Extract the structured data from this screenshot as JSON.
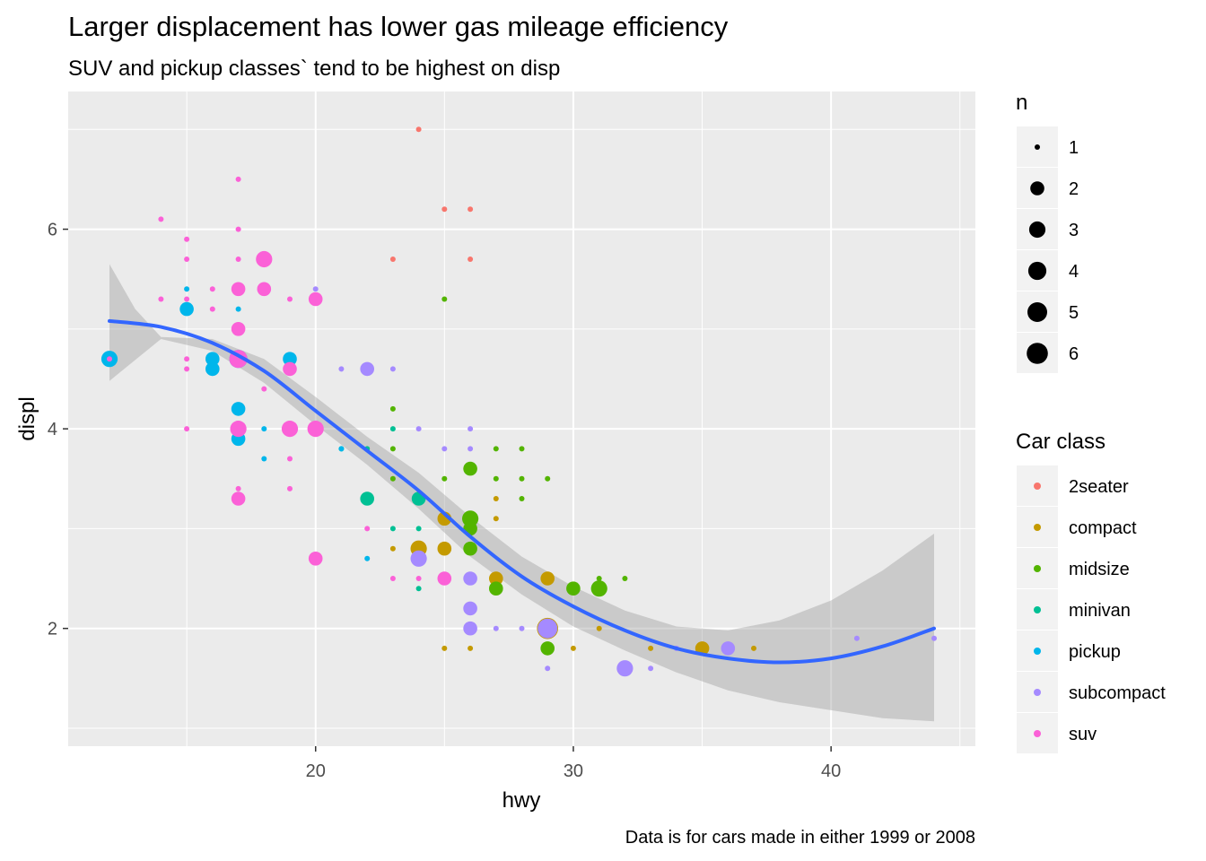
{
  "chart_data": {
    "type": "scatter",
    "title": "Larger displacement has lower gas mileage efficiency",
    "subtitle": "SUV and pickup classes` tend to be highest on disp",
    "caption": "Data is for cars made in either 1999 or 2008",
    "xlabel": "hwy",
    "ylabel": "displ",
    "xlim": [
      10.4,
      45.6
    ],
    "ylim": [
      0.82,
      7.38
    ],
    "x_ticks": [
      20,
      30,
      40
    ],
    "y_ticks": [
      2,
      4,
      6
    ],
    "grid": true,
    "legend_position": "right",
    "size_legend": {
      "title": "n",
      "values": [
        1,
        2,
        3,
        4,
        5,
        6
      ]
    },
    "color_legend": {
      "title": "Car class",
      "entries": [
        {
          "label": "2seater",
          "color": "#F8766D"
        },
        {
          "label": "compact",
          "color": "#C49A00"
        },
        {
          "label": "midsize",
          "color": "#53B400"
        },
        {
          "label": "minivan",
          "color": "#00C094"
        },
        {
          "label": "pickup",
          "color": "#00B6EB"
        },
        {
          "label": "subcompact",
          "color": "#A58AFF"
        },
        {
          "label": "suv",
          "color": "#FB61D7"
        }
      ]
    },
    "series": [
      {
        "name": "2seater",
        "points": [
          [
            23,
            5.7,
            1
          ],
          [
            24,
            7.0,
            1
          ],
          [
            25,
            6.2,
            1
          ],
          [
            26,
            6.2,
            1
          ],
          [
            26,
            5.7,
            1
          ]
        ]
      },
      {
        "name": "compact",
        "points": [
          [
            24,
            2.8,
            3
          ],
          [
            25,
            3.1,
            2
          ],
          [
            25,
            2.8,
            2
          ],
          [
            26,
            3.1,
            2
          ],
          [
            27,
            3.1,
            1
          ],
          [
            27,
            3.3,
            1
          ],
          [
            27,
            2.5,
            2
          ],
          [
            29,
            2.5,
            2
          ],
          [
            29,
            2.0,
            6
          ],
          [
            30,
            1.8,
            1
          ],
          [
            31,
            2.0,
            1
          ],
          [
            35,
            1.8,
            2
          ],
          [
            37,
            1.8,
            1
          ],
          [
            33,
            1.8,
            1
          ],
          [
            25,
            1.8,
            1
          ],
          [
            26,
            1.8,
            1
          ],
          [
            23,
            2.8,
            1
          ]
        ]
      },
      {
        "name": "midsize",
        "points": [
          [
            25,
            5.3,
            1
          ],
          [
            26,
            3.6,
            2
          ],
          [
            26,
            3.1,
            3
          ],
          [
            26,
            3.0,
            2
          ],
          [
            26,
            2.8,
            2
          ],
          [
            27,
            3.5,
            1
          ],
          [
            27,
            3.8,
            1
          ],
          [
            27,
            2.4,
            2
          ],
          [
            28,
            3.8,
            1
          ],
          [
            28,
            3.5,
            1
          ],
          [
            28,
            3.3,
            1
          ],
          [
            29,
            3.5,
            1
          ],
          [
            29,
            1.8,
            2
          ],
          [
            30,
            2.4,
            2
          ],
          [
            31,
            2.4,
            3
          ],
          [
            31,
            2.5,
            1
          ],
          [
            32,
            2.5,
            1
          ],
          [
            25,
            3.5,
            1
          ],
          [
            23,
            4.2,
            1
          ],
          [
            23,
            3.8,
            1
          ],
          [
            23,
            3.5,
            1
          ]
        ]
      },
      {
        "name": "minivan",
        "points": [
          [
            17,
            4.0,
            1
          ],
          [
            21,
            3.8,
            1
          ],
          [
            22,
            3.3,
            2
          ],
          [
            22,
            3.8,
            1
          ],
          [
            23,
            4.0,
            1
          ],
          [
            24,
            3.3,
            2
          ],
          [
            24,
            3.0,
            1
          ],
          [
            24,
            2.4,
            1
          ],
          [
            23,
            3.0,
            1
          ]
        ]
      },
      {
        "name": "pickup",
        "points": [
          [
            12,
            4.7,
            3
          ],
          [
            15,
            5.2,
            2
          ],
          [
            16,
            4.6,
            2
          ],
          [
            16,
            4.7,
            2
          ],
          [
            17,
            4.7,
            4
          ],
          [
            17,
            4.2,
            2
          ],
          [
            17,
            3.9,
            2
          ],
          [
            17,
            5.2,
            1
          ],
          [
            19,
            4.7,
            2
          ],
          [
            18,
            4.0,
            1
          ],
          [
            18,
            3.7,
            1
          ],
          [
            15,
            5.4,
            1
          ],
          [
            17,
            5.4,
            1
          ],
          [
            22,
            2.7,
            1
          ],
          [
            21,
            3.8,
            1
          ]
        ]
      },
      {
        "name": "subcompact",
        "points": [
          [
            19,
            4.0,
            1
          ],
          [
            20,
            4.0,
            1
          ],
          [
            20,
            5.4,
            1
          ],
          [
            21,
            4.6,
            1
          ],
          [
            22,
            4.6,
            2
          ],
          [
            23,
            4.6,
            1
          ],
          [
            24,
            2.7,
            3
          ],
          [
            24,
            4.0,
            1
          ],
          [
            25,
            3.8,
            1
          ],
          [
            26,
            4.0,
            1
          ],
          [
            26,
            3.8,
            1
          ],
          [
            26,
            2.5,
            2
          ],
          [
            26,
            2.2,
            2
          ],
          [
            26,
            2.0,
            2
          ],
          [
            27,
            2.0,
            1
          ],
          [
            28,
            2.0,
            1
          ],
          [
            29,
            2.0,
            5
          ],
          [
            29,
            1.6,
            1
          ],
          [
            32,
            1.6,
            3
          ],
          [
            33,
            1.6,
            1
          ],
          [
            34,
            1.8,
            1
          ],
          [
            36,
            1.8,
            2
          ],
          [
            41,
            1.9,
            1
          ],
          [
            44,
            1.9,
            1
          ]
        ]
      },
      {
        "name": "suv",
        "points": [
          [
            12,
            4.7,
            1
          ],
          [
            14,
            6.1,
            1
          ],
          [
            14,
            5.3,
            1
          ],
          [
            15,
            5.9,
            1
          ],
          [
            15,
            5.7,
            1
          ],
          [
            15,
            5.3,
            1
          ],
          [
            15,
            4.7,
            1
          ],
          [
            15,
            4.6,
            1
          ],
          [
            15,
            4.0,
            1
          ],
          [
            16,
            5.4,
            1
          ],
          [
            16,
            5.2,
            1
          ],
          [
            17,
            6.5,
            1
          ],
          [
            17,
            6.0,
            1
          ],
          [
            17,
            5.7,
            1
          ],
          [
            17,
            5.4,
            2
          ],
          [
            17,
            5.0,
            2
          ],
          [
            17,
            4.7,
            4
          ],
          [
            17,
            4.0,
            3
          ],
          [
            17,
            3.4,
            1
          ],
          [
            17,
            3.3,
            2
          ],
          [
            18,
            5.7,
            3
          ],
          [
            18,
            5.4,
            2
          ],
          [
            18,
            4.4,
            1
          ],
          [
            19,
            5.3,
            1
          ],
          [
            19,
            4.6,
            2
          ],
          [
            19,
            4.0,
            3
          ],
          [
            19,
            3.7,
            1
          ],
          [
            19,
            3.4,
            1
          ],
          [
            20,
            5.3,
            2
          ],
          [
            20,
            4.0,
            3
          ],
          [
            20,
            2.7,
            2
          ],
          [
            22,
            3.0,
            1
          ],
          [
            23,
            2.5,
            1
          ],
          [
            25,
            2.5,
            2
          ],
          [
            24,
            2.5,
            1
          ]
        ]
      }
    ],
    "smooth": {
      "color": "#3366FF",
      "points": [
        [
          12,
          5.08
        ],
        [
          14,
          5.02
        ],
        [
          16,
          4.86
        ],
        [
          18,
          4.58
        ],
        [
          20,
          4.18
        ],
        [
          22,
          3.78
        ],
        [
          24,
          3.38
        ],
        [
          26,
          2.92
        ],
        [
          28,
          2.52
        ],
        [
          30,
          2.22
        ],
        [
          32,
          1.98
        ],
        [
          34,
          1.8
        ],
        [
          36,
          1.7
        ],
        [
          38,
          1.66
        ],
        [
          40,
          1.7
        ],
        [
          42,
          1.82
        ],
        [
          44,
          2.0
        ]
      ],
      "band_upper": [
        [
          12,
          5.65
        ],
        [
          13,
          5.2
        ],
        [
          14,
          4.92
        ],
        [
          16,
          4.9
        ],
        [
          18,
          4.7
        ],
        [
          20,
          4.32
        ],
        [
          22,
          3.92
        ],
        [
          24,
          3.56
        ],
        [
          26,
          3.12
        ],
        [
          28,
          2.72
        ],
        [
          30,
          2.42
        ],
        [
          32,
          2.18
        ],
        [
          34,
          2.02
        ],
        [
          36,
          1.98
        ],
        [
          38,
          2.08
        ],
        [
          40,
          2.28
        ],
        [
          42,
          2.58
        ],
        [
          44,
          2.95
        ]
      ],
      "band_lower": [
        [
          44,
          1.07
        ],
        [
          42,
          1.1
        ],
        [
          40,
          1.18
        ],
        [
          38,
          1.26
        ],
        [
          36,
          1.38
        ],
        [
          34,
          1.56
        ],
        [
          32,
          1.78
        ],
        [
          30,
          2.02
        ],
        [
          28,
          2.34
        ],
        [
          26,
          2.72
        ],
        [
          24,
          3.2
        ],
        [
          22,
          3.64
        ],
        [
          20,
          4.04
        ],
        [
          18,
          4.46
        ],
        [
          16,
          4.78
        ],
        [
          14,
          4.9
        ],
        [
          12,
          4.48
        ]
      ]
    }
  }
}
